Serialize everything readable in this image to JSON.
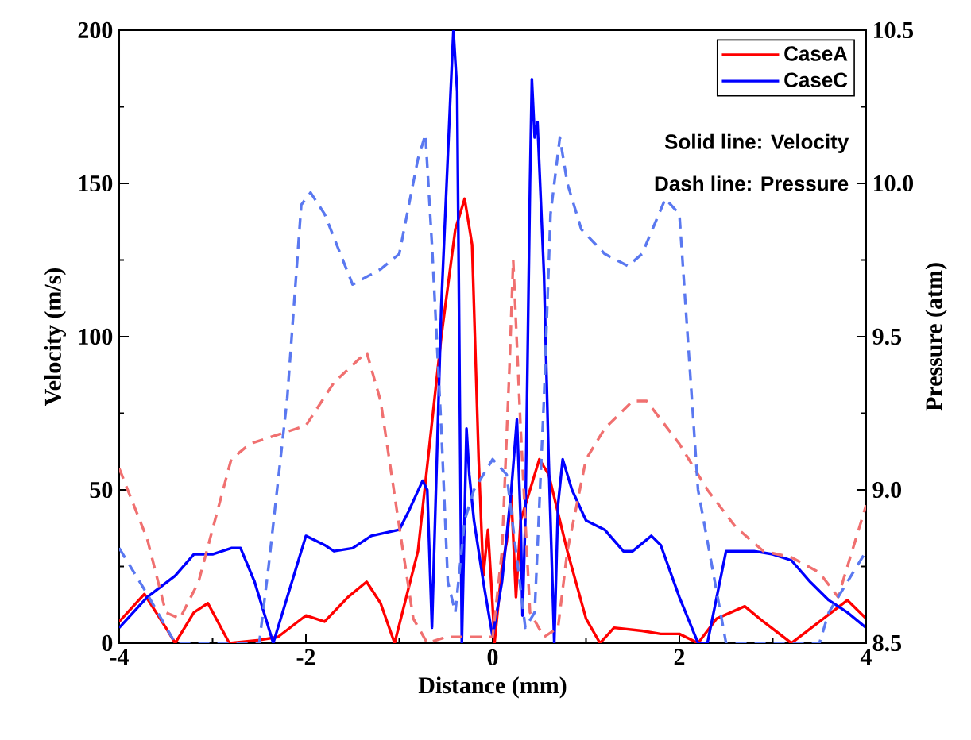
{
  "chart_data": {
    "type": "line",
    "xlabel": "Distance (mm)",
    "ylabel": "Velocity (m/s)",
    "y2label": "Pressure (atm)",
    "xlim": [
      -4,
      4
    ],
    "xticks": [
      -4,
      -2,
      0,
      2,
      4
    ],
    "ylim": [
      0,
      200
    ],
    "yticks": [
      0,
      50,
      100,
      150,
      200
    ],
    "y2lim": [
      8.5,
      10.5
    ],
    "y2ticks": [
      {
        "value": 8.5,
        "label": "8.5"
      },
      {
        "value": 9,
        "label": "9.0"
      },
      {
        "value": 9.5,
        "label": "9.5"
      },
      {
        "value": 10,
        "label": "10.0"
      },
      {
        "value": 10.5,
        "label": "10.5"
      }
    ],
    "legend": "top right",
    "annotations": [
      "Solid line: Velocity",
      "Dash line: Pressure"
    ],
    "series": [
      {
        "name": "CaseA",
        "color": "#ff0000",
        "line_style": "solid",
        "x": [
          -4,
          -3.73,
          -3.5,
          -3.4,
          -3.2,
          -3.05,
          -2.82,
          -2.5,
          -2.3,
          -2.0,
          -1.8,
          -1.55,
          -1.35,
          -1.2,
          -1.05,
          -0.8,
          -0.55,
          -0.4,
          -0.3,
          -0.22,
          -0.15,
          -0.1,
          -0.05,
          0,
          0.02,
          0.1,
          0.15,
          0.2,
          0.25,
          0.3,
          0.4,
          0.5,
          0.6,
          0.8,
          1.0,
          1.15,
          1.3,
          1.6,
          1.8,
          2.0,
          2.2,
          2.4,
          2.7,
          2.9,
          3.2,
          3.5,
          3.8,
          4
        ],
        "values": [
          7,
          16,
          5,
          0,
          10,
          13,
          0,
          1,
          2,
          9,
          7,
          15,
          20,
          13,
          0,
          30,
          100,
          135,
          145,
          130,
          60,
          22,
          37,
          12,
          0,
          25,
          33,
          48,
          15,
          40,
          50,
          60,
          55,
          30,
          8,
          0,
          5,
          4,
          3,
          3,
          0,
          8,
          12,
          7,
          0,
          7,
          14,
          8
        ]
      },
      {
        "name": "CaseC",
        "color": "#0000ff",
        "line_style": "solid",
        "x": [
          -4,
          -3.7,
          -3.4,
          -3.2,
          -3.0,
          -2.8,
          -2.7,
          -2.55,
          -2.35,
          -2.1,
          -2.0,
          -1.8,
          -1.7,
          -1.5,
          -1.3,
          -1.0,
          -0.9,
          -0.75,
          -0.7,
          -0.65,
          -0.55,
          -0.45,
          -0.42,
          -0.38,
          -0.33,
          -0.28,
          -0.25,
          -0.2,
          -0.1,
          0.0,
          0.1,
          0.2,
          0.26,
          0.3,
          0.32,
          0.35,
          0.4,
          0.42,
          0.45,
          0.48,
          0.55,
          0.6,
          0.66,
          0.7,
          0.75,
          0.85,
          1.0,
          1.2,
          1.4,
          1.5,
          1.7,
          1.8,
          2.0,
          2.2,
          2.3,
          2.5,
          2.8,
          3.0,
          3.2,
          3.4,
          3.6,
          3.8,
          4.0
        ],
        "values": [
          5,
          15,
          22,
          29,
          29,
          31,
          31,
          20,
          0,
          25,
          35,
          32,
          30,
          31,
          35,
          37,
          43,
          53,
          50,
          5,
          110,
          180,
          200,
          180,
          0,
          70,
          55,
          40,
          20,
          2,
          20,
          50,
          73,
          40,
          9,
          40,
          150,
          184,
          165,
          170,
          120,
          60,
          0,
          45,
          60,
          50,
          40,
          37,
          30,
          30,
          35,
          32,
          15,
          0,
          0,
          30,
          30,
          29,
          27,
          20,
          14,
          10,
          5
        ]
      },
      {
        "color": "#f07070",
        "line_style": "dashed",
        "axis": "y2",
        "x": [
          -4,
          -3.7,
          -3.5,
          -3.35,
          -3.15,
          -2.8,
          -2.6,
          -2.0,
          -1.7,
          -1.35,
          -1.2,
          -1.0,
          -0.85,
          -0.7,
          -0.5,
          0.0,
          0.1,
          0.18,
          0.22,
          0.3,
          0.4,
          0.55,
          0.7,
          0.8,
          1.0,
          1.2,
          1.5,
          1.65,
          2.0,
          2.3,
          2.6,
          2.9,
          3.2,
          3.5,
          3.7,
          4.0
        ],
        "values": [
          9.07,
          8.84,
          8.6,
          8.58,
          8.7,
          9.1,
          9.15,
          9.21,
          9.35,
          9.45,
          9.29,
          8.88,
          8.58,
          8.5,
          8.52,
          8.52,
          8.8,
          9.4,
          9.75,
          9.2,
          8.6,
          8.52,
          8.55,
          8.8,
          9.1,
          9.2,
          9.29,
          9.29,
          9.15,
          9.0,
          8.88,
          8.8,
          8.78,
          8.73,
          8.65,
          8.95
        ]
      },
      {
        "color": "#5a78f0",
        "line_style": "dashed",
        "axis": "y2",
        "x": [
          -4,
          -3.7,
          -3.4,
          -2.5,
          -2.4,
          -2.2,
          -2.05,
          -1.95,
          -1.8,
          -1.5,
          -1.2,
          -1.0,
          -0.8,
          -0.72,
          -0.65,
          -0.55,
          -0.48,
          -0.4,
          -0.3,
          -0.2,
          0,
          0.15,
          0.25,
          0.35,
          0.45,
          0.55,
          0.62,
          0.72,
          0.8,
          0.95,
          1.2,
          1.45,
          1.6,
          1.85,
          2.0,
          2.2,
          2.5,
          3.5,
          3.6,
          3.8,
          4.0
        ],
        "values": [
          8.81,
          8.66,
          8.5,
          8.5,
          8.75,
          9.3,
          9.93,
          9.97,
          9.9,
          9.67,
          9.72,
          9.77,
          10.08,
          10.16,
          9.8,
          9.2,
          8.7,
          8.6,
          8.9,
          9.0,
          9.1,
          9.05,
          8.8,
          8.55,
          8.6,
          9.3,
          9.9,
          10.15,
          10.0,
          9.85,
          9.77,
          9.73,
          9.77,
          9.95,
          9.9,
          9.0,
          8.5,
          8.5,
          8.6,
          8.7,
          8.8
        ]
      }
    ]
  }
}
